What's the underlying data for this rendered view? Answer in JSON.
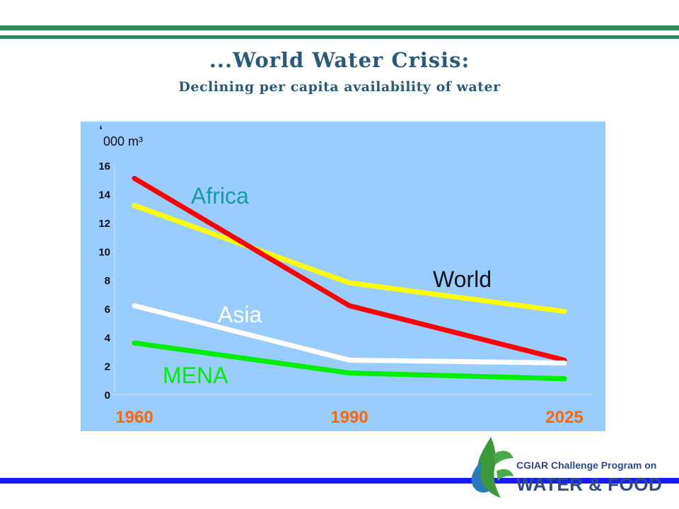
{
  "slide": {
    "title": "...World Water Crisis:",
    "subtitle": "Declining per capita availability of water"
  },
  "logo": {
    "line1": "CGIAR Challenge Program on",
    "line2": "WATER & FOOD"
  },
  "colors": {
    "stripe_green": "#2e8b57",
    "stripe_blue": "#1a1aff",
    "chart_bg": "#99ccff",
    "title": "#2a5a78"
  },
  "chart_data": {
    "type": "line",
    "unit_label_mark": "‘",
    "unit_label": "000 m³",
    "x": [
      "1960",
      "1990",
      "2025"
    ],
    "ylim": [
      0,
      16
    ],
    "yticks": [
      0,
      2,
      4,
      6,
      8,
      10,
      12,
      14,
      16
    ],
    "grid": false,
    "series": [
      {
        "name": "Africa",
        "color": "#ff0000",
        "label_color": "#1a9aa0",
        "values": [
          15.1,
          6.2,
          2.4
        ]
      },
      {
        "name": "World",
        "color": "#ffff00",
        "label_color": "#111111",
        "values": [
          13.2,
          7.8,
          5.8
        ]
      },
      {
        "name": "Asia",
        "color": "#ffffff",
        "label_color": "#ffffff",
        "values": [
          6.2,
          2.4,
          2.2
        ]
      },
      {
        "name": "MENA",
        "color": "#00ee00",
        "label_color": "#00ee00",
        "values": [
          3.6,
          1.5,
          1.1
        ]
      }
    ]
  }
}
